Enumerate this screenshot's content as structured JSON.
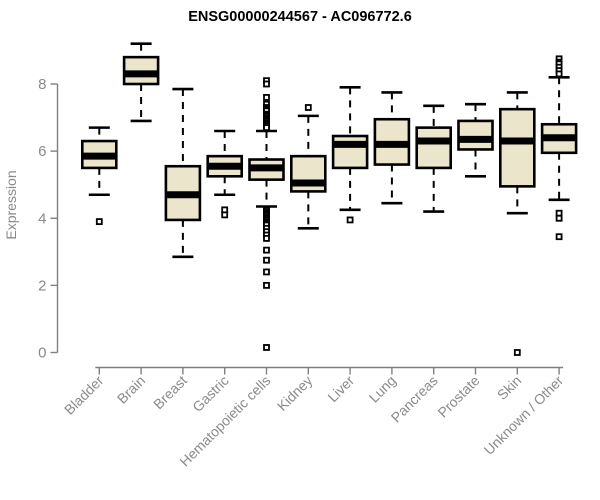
{
  "page": {
    "background": "#ffffff"
  },
  "chart_data": {
    "type": "boxplot",
    "title": "ENSG00000244567 - AC096772.6",
    "ylabel": "Expression",
    "xlabel": "",
    "ylim": [
      0,
      8
    ],
    "yticks": [
      0,
      2,
      4,
      6,
      8
    ],
    "grid": false,
    "legend": "none",
    "colors": {
      "box_fill": "#EBE5CB",
      "box_stroke": "#000000",
      "median_stroke": "#000000",
      "whisker_stroke": "#000000",
      "axis_color": "#808080",
      "label_color": "#8a8a8a",
      "title_color": "#000000"
    },
    "categories": [
      "Bladder",
      "Brain",
      "Breast",
      "Gastric",
      "Hematopoietic cells",
      "Kidney",
      "Liver",
      "Lung",
      "Pancreas",
      "Prostate",
      "Skin",
      "Unknown / Other"
    ],
    "boxes": [
      {
        "label": "Bladder",
        "low": 4.7,
        "q1": 5.5,
        "median": 5.85,
        "q3": 6.3,
        "high": 6.7,
        "outliers": [
          3.9
        ]
      },
      {
        "label": "Brain",
        "low": 6.9,
        "q1": 8.0,
        "median": 8.3,
        "q3": 8.8,
        "high": 9.2,
        "outliers": []
      },
      {
        "label": "Breast",
        "low": 2.85,
        "q1": 3.95,
        "median": 4.7,
        "q3": 5.55,
        "high": 7.85,
        "outliers": []
      },
      {
        "label": "Gastric",
        "low": 4.7,
        "q1": 5.25,
        "median": 5.55,
        "q3": 5.85,
        "high": 6.6,
        "outliers": [
          4.25,
          4.1
        ]
      },
      {
        "label": "Hematopoietic cells",
        "low": 4.35,
        "q1": 5.15,
        "median": 5.5,
        "q3": 5.75,
        "high": 6.6,
        "outliers": [
          8.1,
          8.0,
          7.6,
          7.4,
          7.3,
          7.25,
          7.2,
          7.1,
          7.05,
          7.0,
          6.95,
          6.9,
          6.85,
          6.8,
          6.75,
          6.7,
          4.25,
          4.2,
          4.15,
          4.1,
          4.05,
          4.0,
          3.95,
          3.9,
          3.85,
          3.8,
          3.7,
          3.6,
          3.5,
          3.4,
          3.05,
          2.75,
          2.4,
          2.0,
          0.15
        ]
      },
      {
        "label": "Kidney",
        "low": 3.7,
        "q1": 4.8,
        "median": 5.05,
        "q3": 5.85,
        "high": 7.05,
        "outliers": [
          7.3
        ]
      },
      {
        "label": "Liver",
        "low": 4.25,
        "q1": 5.5,
        "median": 6.2,
        "q3": 6.45,
        "high": 7.9,
        "outliers": [
          3.95
        ]
      },
      {
        "label": "Lung",
        "low": 4.45,
        "q1": 5.6,
        "median": 6.2,
        "q3": 6.95,
        "high": 7.75,
        "outliers": []
      },
      {
        "label": "Pancreas",
        "low": 4.2,
        "q1": 5.5,
        "median": 6.3,
        "q3": 6.7,
        "high": 7.35,
        "outliers": []
      },
      {
        "label": "Prostate",
        "low": 5.25,
        "q1": 6.05,
        "median": 6.35,
        "q3": 6.9,
        "high": 7.4,
        "outliers": []
      },
      {
        "label": "Skin",
        "low": 4.15,
        "q1": 4.95,
        "median": 6.3,
        "q3": 7.25,
        "high": 7.75,
        "outliers": [
          0
        ]
      },
      {
        "label": "Unknown / Other",
        "low": 4.55,
        "q1": 5.95,
        "median": 6.4,
        "q3": 6.8,
        "high": 8.2,
        "outliers": [
          8.75,
          8.65,
          8.6,
          8.5,
          8.4,
          8.3,
          4.15,
          4.0,
          3.45
        ]
      }
    ]
  }
}
